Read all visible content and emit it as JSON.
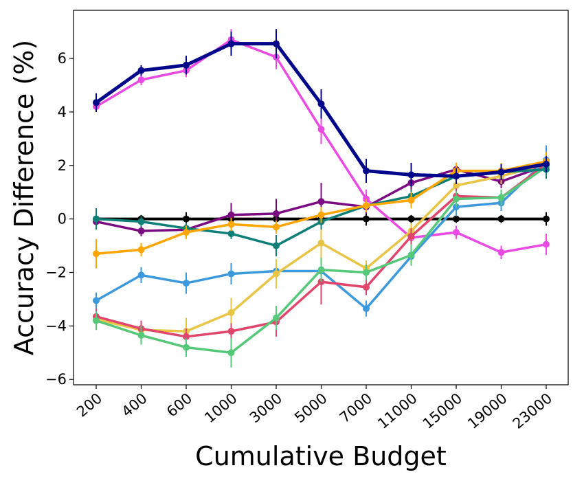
{
  "chart_data": {
    "type": "line",
    "title": "",
    "xlabel": "Cumulative Budget",
    "ylabel": "Accuracy Difference (%)",
    "categories": [
      "200",
      "400",
      "600",
      "1000",
      "3000",
      "5000",
      "7000",
      "11000",
      "15000",
      "19000",
      "23000"
    ],
    "ylim": [
      -6.2,
      7.8
    ],
    "yticks": [
      -6,
      -4,
      -2,
      0,
      2,
      4,
      6
    ],
    "ytick_labels": [
      "−6",
      "−4",
      "−2",
      "0",
      "2",
      "4",
      "6"
    ],
    "grid": false,
    "legend": "none",
    "series": [
      {
        "color": "#000000",
        "linewidth": 4,
        "values": [
          0,
          0,
          0,
          0,
          0,
          0,
          0,
          0,
          0,
          0,
          0
        ],
        "errors": [
          0.15,
          0.15,
          0.25,
          0.15,
          0.15,
          0.15,
          0.25,
          0.15,
          0.15,
          0.15,
          0.25
        ]
      },
      {
        "color": "#7b0a82",
        "linewidth": 3.5,
        "values": [
          -0.1,
          -0.45,
          -0.4,
          0.15,
          0.2,
          0.65,
          0.45,
          1.35,
          1.85,
          1.4,
          2.0
        ],
        "errors": [
          0.2,
          0.2,
          0.2,
          0.45,
          0.55,
          0.7,
          0.25,
          0.25,
          0.25,
          0.25,
          0.25
        ]
      },
      {
        "color": "#e94be2",
        "linewidth": 3.5,
        "values": [
          4.2,
          5.2,
          5.55,
          6.7,
          6.05,
          3.35,
          0.75,
          -0.7,
          -0.5,
          -1.25,
          -0.95
        ],
        "errors": [
          0.2,
          0.2,
          0.25,
          0.4,
          0.45,
          0.55,
          0.35,
          0.25,
          0.25,
          0.25,
          0.4
        ]
      },
      {
        "color": "#3c99dc",
        "linewidth": 3.5,
        "values": [
          -3.05,
          -2.1,
          -2.4,
          -2.05,
          -1.95,
          -1.95,
          -3.35,
          -1.4,
          0.45,
          0.6,
          2.2
        ],
        "errors": [
          0.3,
          0.3,
          0.4,
          0.4,
          0.35,
          0.4,
          0.3,
          0.3,
          0.35,
          0.3,
          0.55
        ]
      },
      {
        "color": "#e8c547",
        "linewidth": 3.5,
        "values": [
          -3.75,
          -4.15,
          -4.2,
          -3.5,
          -2.05,
          -0.9,
          -1.85,
          -0.45,
          1.25,
          1.6,
          2.05
        ],
        "errors": [
          0.35,
          0.35,
          0.5,
          0.55,
          0.55,
          0.55,
          0.3,
          0.3,
          0.3,
          0.3,
          0.3
        ]
      },
      {
        "color": "#e0456b",
        "linewidth": 3.5,
        "values": [
          -3.65,
          -4.1,
          -4.4,
          -4.2,
          -3.85,
          -2.35,
          -2.55,
          -0.65,
          0.85,
          0.8,
          2.05
        ],
        "errors": [
          0.3,
          0.3,
          0.3,
          0.3,
          0.55,
          0.85,
          0.3,
          0.3,
          0.3,
          0.3,
          0.3
        ]
      },
      {
        "color": "#56c87a",
        "linewidth": 3.5,
        "values": [
          -3.8,
          -4.35,
          -4.8,
          -5.0,
          -3.7,
          -1.9,
          -2.0,
          -1.35,
          0.75,
          0.8,
          1.95
        ],
        "errors": [
          0.35,
          0.35,
          0.35,
          0.55,
          0.45,
          0.45,
          0.3,
          0.4,
          0.3,
          0.3,
          0.3
        ]
      },
      {
        "color": "#0e7f77",
        "linewidth": 3.5,
        "values": [
          0,
          -0.1,
          -0.35,
          -0.55,
          -1.0,
          -0.1,
          0.5,
          0.85,
          1.6,
          1.75,
          1.85
        ],
        "errors": [
          0.4,
          0.2,
          0.2,
          0.2,
          0.4,
          0.3,
          0.25,
          0.25,
          0.25,
          0.25,
          0.35
        ]
      },
      {
        "color": "#ffa500",
        "linewidth": 3.5,
        "values": [
          -1.3,
          -1.15,
          -0.5,
          -0.2,
          -0.3,
          0.15,
          0.5,
          0.7,
          1.8,
          1.8,
          2.15
        ],
        "errors": [
          0.55,
          0.25,
          0.25,
          0.25,
          0.25,
          0.3,
          0.25,
          0.3,
          0.3,
          0.3,
          0.35
        ]
      },
      {
        "color": "#00068a",
        "linewidth": 5,
        "values": [
          4.35,
          5.55,
          5.75,
          6.55,
          6.55,
          4.3,
          1.8,
          1.65,
          1.6,
          1.75,
          2.05
        ],
        "errors": [
          0.35,
          0.2,
          0.35,
          0.45,
          0.55,
          0.55,
          0.45,
          0.45,
          0.3,
          0.3,
          0.3
        ]
      }
    ]
  }
}
